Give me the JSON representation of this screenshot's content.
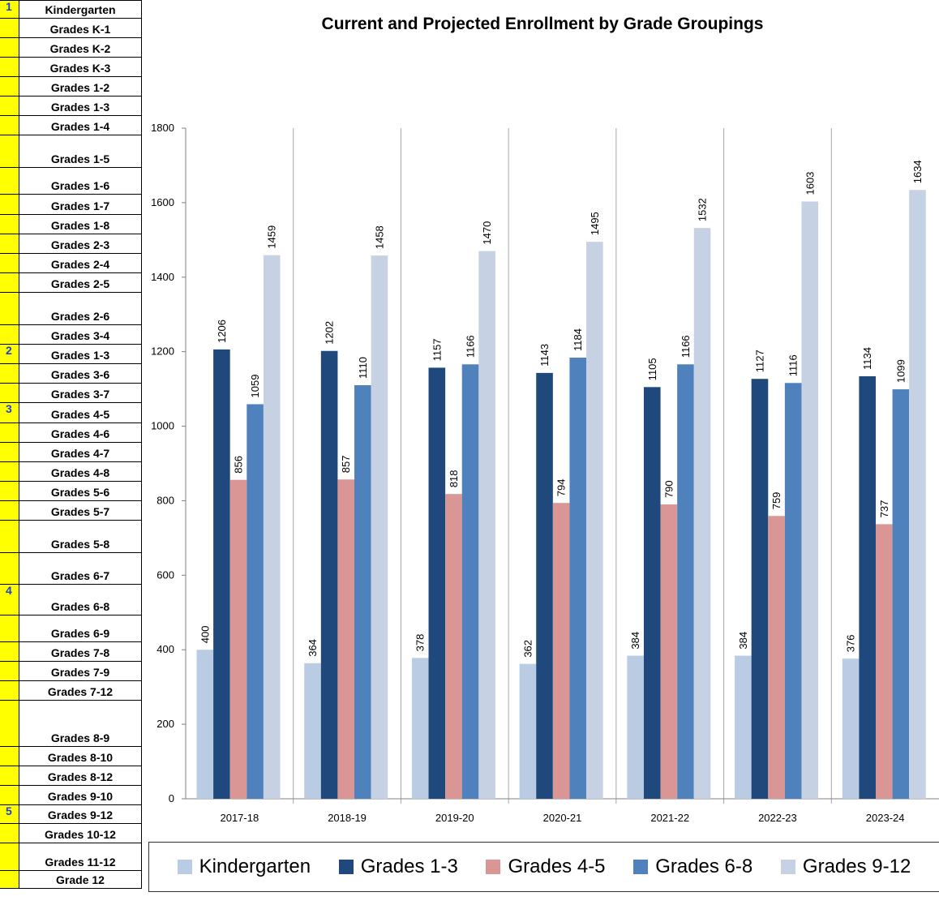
{
  "sheet": {
    "rows": [
      {
        "idx": "1",
        "label": "Kindergarten",
        "h": 23
      },
      {
        "idx": "",
        "label": "Grades K-1",
        "h": 24
      },
      {
        "idx": "",
        "label": "Grades K-2",
        "h": 24
      },
      {
        "idx": "",
        "label": "Grades K-3",
        "h": 24
      },
      {
        "idx": "",
        "label": "Grades 1-2",
        "h": 24
      },
      {
        "idx": "",
        "label": "Grades 1-3",
        "h": 24
      },
      {
        "idx": "",
        "label": "Grades 1-4",
        "h": 24
      },
      {
        "idx": "",
        "label": "Grades 1-5",
        "h": 40
      },
      {
        "idx": "",
        "label": "Grades 1-6",
        "h": 33
      },
      {
        "idx": "",
        "label": "Grades 1-7",
        "h": 25
      },
      {
        "idx": "",
        "label": "Grades 1-8",
        "h": 24
      },
      {
        "idx": "",
        "label": "Grades 2-3",
        "h": 24
      },
      {
        "idx": "",
        "label": "Grades 2-4",
        "h": 24
      },
      {
        "idx": "",
        "label": "Grades 2-5",
        "h": 24
      },
      {
        "idx": "",
        "label": "Grades 2-6",
        "h": 40
      },
      {
        "idx": "",
        "label": "Grades 3-4",
        "h": 24
      },
      {
        "idx": "2",
        "label": "Grades 1-3",
        "h": 24
      },
      {
        "idx": "",
        "label": "Grades 3-6",
        "h": 24
      },
      {
        "idx": "",
        "label": "Grades 3-7",
        "h": 24
      },
      {
        "idx": "3",
        "label": "Grades 4-5",
        "h": 25
      },
      {
        "idx": "",
        "label": "Grades 4-6",
        "h": 24
      },
      {
        "idx": "",
        "label": "Grades 4-7",
        "h": 24
      },
      {
        "idx": "",
        "label": "Grades 4-8",
        "h": 24
      },
      {
        "idx": "",
        "label": "Grades 5-6",
        "h": 24
      },
      {
        "idx": "",
        "label": "Grades 5-7",
        "h": 24
      },
      {
        "idx": "",
        "label": "Grades 5-8",
        "h": 40
      },
      {
        "idx": "",
        "label": "Grades 6-7",
        "h": 39
      },
      {
        "idx": "4",
        "label": "Grades 6-8",
        "h": 38
      },
      {
        "idx": "",
        "label": "Grades 6-9",
        "h": 33
      },
      {
        "idx": "",
        "label": "Grades 7-8",
        "h": 24
      },
      {
        "idx": "",
        "label": "Grades 7-9",
        "h": 24
      },
      {
        "idx": "",
        "label": "Grades 7-12",
        "h": 24
      },
      {
        "idx": "",
        "label": "Grades 8-9",
        "h": 57
      },
      {
        "idx": "",
        "label": "Grades 8-10",
        "h": 24
      },
      {
        "idx": "",
        "label": "Grades 8-12",
        "h": 24
      },
      {
        "idx": "",
        "label": "Grades 9-10",
        "h": 24
      },
      {
        "idx": "5",
        "label": "Grades 9-12",
        "h": 23
      },
      {
        "idx": "",
        "label": "Grades 10-12",
        "h": 24
      },
      {
        "idx": "",
        "label": "Grades 11-12",
        "h": 34
      },
      {
        "idx": "",
        "label": "Grade 12",
        "h": 22
      }
    ]
  },
  "colors": {
    "Kindergarten": "#b9cce4",
    "Grades 1-3": "#1f497d",
    "Grades 4-5": "#d99694",
    "Grades 6-8": "#4f81bd",
    "Grades 9-12": "#c6d1e3"
  },
  "chart_data": {
    "type": "bar",
    "title": "Current and Projected Enrollment by Grade Groupings",
    "categories": [
      "2017-18",
      "2018-19",
      "2019-20",
      "2020-21",
      "2021-22",
      "2022-23",
      "2023-24"
    ],
    "series": [
      {
        "name": "Kindergarten",
        "values": [
          400,
          364,
          378,
          362,
          384,
          384,
          376
        ]
      },
      {
        "name": "Grades 1-3",
        "values": [
          1206,
          1202,
          1157,
          1143,
          1105,
          1127,
          1134
        ]
      },
      {
        "name": "Grades 4-5",
        "values": [
          856,
          857,
          818,
          794,
          790,
          759,
          737
        ]
      },
      {
        "name": "Grades 6-8",
        "values": [
          1059,
          1110,
          1166,
          1184,
          1166,
          1116,
          1099
        ]
      },
      {
        "name": "Grades 9-12",
        "values": [
          1459,
          1458,
          1470,
          1495,
          1532,
          1603,
          1634
        ]
      }
    ],
    "ylim": [
      0,
      1800
    ],
    "yticks": [
      0,
      200,
      400,
      600,
      800,
      1000,
      1200,
      1400,
      1600,
      1800
    ],
    "legend_position": "bottom",
    "data_labels": true
  }
}
